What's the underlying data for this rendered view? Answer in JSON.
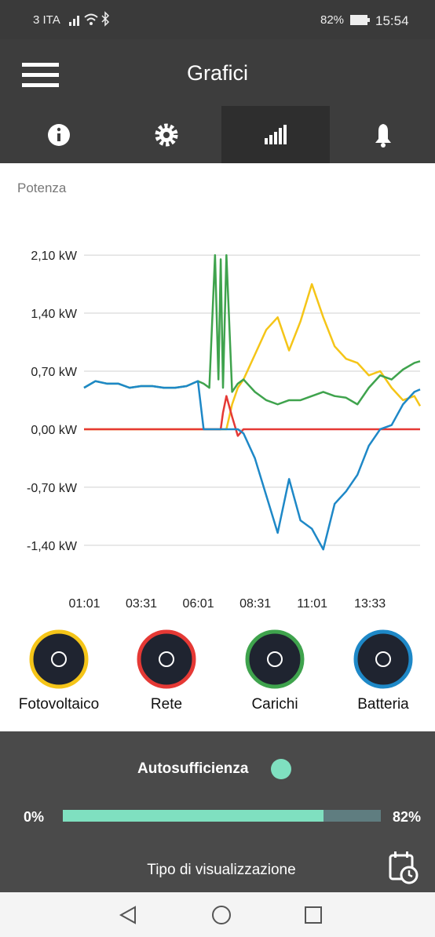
{
  "status_bar": {
    "carrier": "3 ITA",
    "battery": "82%",
    "time": "15:54"
  },
  "header": {
    "title": "Grafici"
  },
  "chart_data": {
    "type": "line",
    "title": "Potenza",
    "x": [
      1,
      1.5,
      2,
      2.5,
      3,
      3.5,
      4,
      4.5,
      5,
      5.5,
      6,
      6.25,
      6.5,
      6.75,
      6.9,
      7.0,
      7.1,
      7.25,
      7.5,
      7.75,
      8,
      8.5,
      9,
      9.5,
      10,
      10.5,
      11,
      11.5,
      12,
      12.5,
      13,
      13.5,
      14,
      14.5,
      15,
      15.5,
      15.75
    ],
    "series": [
      {
        "name": "Fotovoltaico",
        "color": "#f5c518",
        "values": [
          0,
          0,
          0,
          0,
          0,
          0,
          0,
          0,
          0,
          0,
          0,
          0,
          0,
          0,
          0,
          0,
          0,
          0,
          0.3,
          0.5,
          0.6,
          0.9,
          1.2,
          1.35,
          0.95,
          1.3,
          1.75,
          1.35,
          1.0,
          0.85,
          0.8,
          0.65,
          0.7,
          0.5,
          0.35,
          0.4,
          0.28
        ]
      },
      {
        "name": "Rete",
        "color": "#e53935",
        "values": [
          0,
          0,
          0,
          0,
          0,
          0,
          0,
          0,
          0,
          0,
          0,
          0,
          0,
          0,
          0,
          0,
          0.2,
          0.4,
          0.15,
          -0.08,
          0,
          0,
          0,
          0,
          0,
          0,
          0,
          0,
          0,
          0,
          0,
          0,
          0,
          0,
          0,
          0,
          0
        ]
      },
      {
        "name": "Carichi",
        "color": "#3fa34d",
        "values": [
          0.5,
          0.58,
          0.55,
          0.55,
          0.5,
          0.52,
          0.52,
          0.5,
          0.5,
          0.52,
          0.58,
          0.55,
          0.5,
          2.1,
          0.6,
          2.05,
          0.5,
          2.1,
          0.45,
          0.55,
          0.6,
          0.45,
          0.35,
          0.3,
          0.35,
          0.35,
          0.4,
          0.45,
          0.4,
          0.38,
          0.3,
          0.5,
          0.65,
          0.6,
          0.72,
          0.8,
          0.82
        ]
      },
      {
        "name": "Batteria",
        "color": "#1e88c7",
        "values": [
          0.5,
          0.58,
          0.55,
          0.55,
          0.5,
          0.52,
          0.52,
          0.5,
          0.5,
          0.52,
          0.58,
          0,
          0,
          0,
          0,
          0,
          0,
          0,
          0,
          0,
          -0.05,
          -0.35,
          -0.8,
          -1.25,
          -0.6,
          -1.1,
          -1.2,
          -1.45,
          -0.9,
          -0.75,
          -0.55,
          -0.2,
          0,
          0.05,
          0.3,
          0.45,
          0.48
        ]
      }
    ],
    "xlim": [
      1,
      15.75
    ],
    "xticks": [
      {
        "value": 1.017,
        "label": "01:01"
      },
      {
        "value": 3.517,
        "label": "03:31"
      },
      {
        "value": 6.017,
        "label": "06:01"
      },
      {
        "value": 8.517,
        "label": "08:31"
      },
      {
        "value": 11.017,
        "label": "11:01"
      },
      {
        "value": 13.55,
        "label": "13:33"
      }
    ],
    "ylim": [
      -1.6,
      2.2
    ],
    "yticks": [
      {
        "value": -1.4,
        "label": "-1,40 kW"
      },
      {
        "value": -0.7,
        "label": "-0,70 kW"
      },
      {
        "value": 0,
        "label": "0,00 kW"
      },
      {
        "value": 0.7,
        "label": "0,70 kW"
      },
      {
        "value": 1.4,
        "label": "1,40 kW"
      },
      {
        "value": 2.1,
        "label": "2,10 kW"
      }
    ],
    "grid": true
  },
  "autosufficienza": {
    "title": "Autosufficienza",
    "min": 0,
    "min_label": "0%",
    "value": 82,
    "value_label": "82%"
  },
  "footer": {
    "label": "Tipo di visualizzazione"
  }
}
